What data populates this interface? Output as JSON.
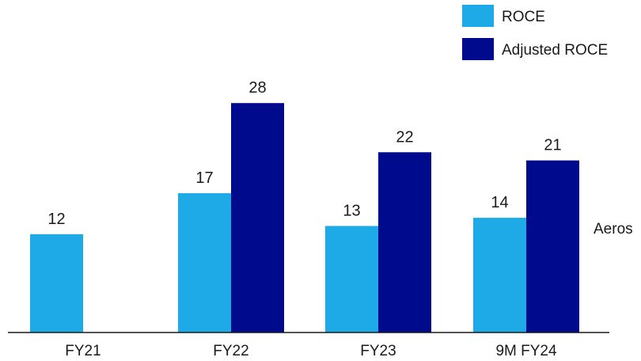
{
  "chart_data": {
    "type": "bar",
    "categories": [
      "FY21",
      "FY22",
      "FY23",
      "9M FY24"
    ],
    "series": [
      {
        "name": "ROCE",
        "color": "#1eaae7",
        "values": [
          12,
          17,
          13,
          14
        ]
      },
      {
        "name": "Adjusted ROCE",
        "color": "#000a8c",
        "values": [
          null,
          28,
          22,
          21
        ]
      }
    ],
    "legend_position": "top-right",
    "grid": false,
    "ylim": [
      0,
      30
    ],
    "title": "",
    "xlabel": "",
    "ylabel": ""
  },
  "side_note": "Aeros"
}
